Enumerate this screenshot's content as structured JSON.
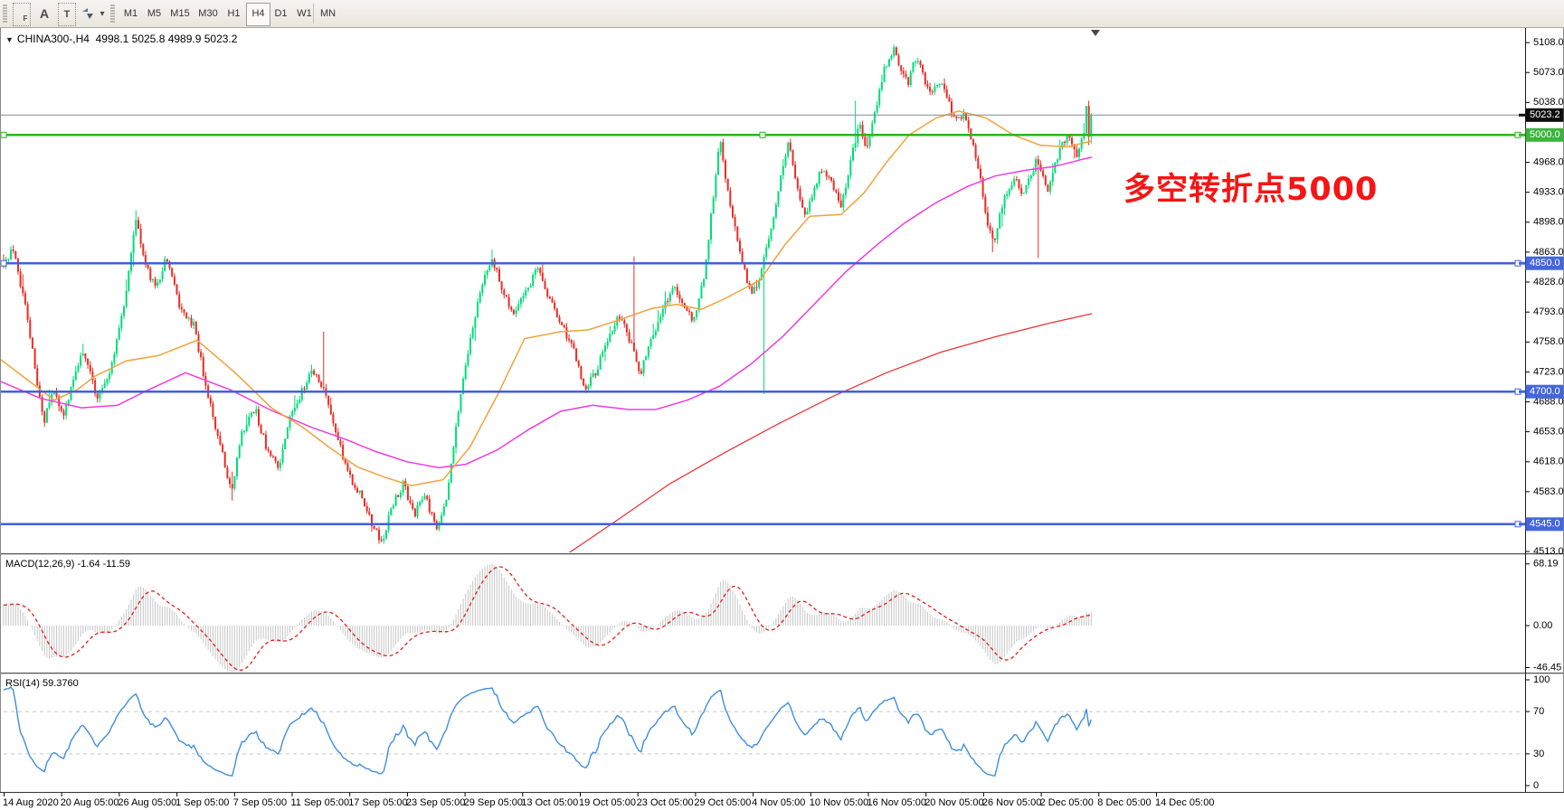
{
  "toolbar": {
    "icon_buttons": [
      {
        "name": "anchor-grid-f-icon",
        "glyph": "F"
      },
      {
        "name": "label-a-icon",
        "glyph": "A"
      },
      {
        "name": "text-tool-icon",
        "glyph": "T"
      },
      {
        "name": "arrow-style-icon",
        "glyph": ""
      },
      {
        "name": "dropdown-caret-icon",
        "glyph": "▾"
      }
    ],
    "timeframes": [
      {
        "label": "M1",
        "active": false
      },
      {
        "label": "M5",
        "active": false
      },
      {
        "label": "M15",
        "active": false
      },
      {
        "label": "M30",
        "active": false
      },
      {
        "label": "H1",
        "active": false
      },
      {
        "label": "H4",
        "active": true
      },
      {
        "label": "D1",
        "active": false
      },
      {
        "label": "W1",
        "active": false
      },
      {
        "label": "MN",
        "active": false
      }
    ]
  },
  "chart": {
    "title": {
      "dropdown_glyph": "▼",
      "symbol": "CHINA300-,H4",
      "ohlc": "4998.1 5025.8 4989.9 5023.2"
    },
    "annotation": {
      "text": "多空转折点5000",
      "color": "#F81414"
    }
  },
  "price_axis": {
    "ticks": [
      5108,
      5073,
      5038,
      4968,
      4933,
      4898,
      4863,
      4828,
      4793,
      4758,
      4723,
      4688,
      4653,
      4618,
      4583,
      4513
    ],
    "tags": [
      {
        "label": "5023.2",
        "value": 5023.2,
        "bg": "#0d0d0d",
        "type": "current-price-tag"
      },
      {
        "label": "5000.0",
        "value": 5000.0,
        "bg": "#3cb43c",
        "type": "hline-tag"
      },
      {
        "label": "4850.0",
        "value": 4850.0,
        "bg": "#4466dd",
        "type": "hline-tag"
      },
      {
        "label": "4700.0",
        "value": 4700.0,
        "bg": "#4466dd",
        "type": "hline-tag"
      },
      {
        "label": "4545.0",
        "value": 4545.0,
        "bg": "#4466dd",
        "type": "hline-tag"
      }
    ]
  },
  "time_axis": {
    "labels": [
      "14 Aug 2020",
      "20 Aug 05:00",
      "26 Aug 05:00",
      "1 Sep 05:00",
      "7 Sep 05:00",
      "11 Sep 05:00",
      "17 Sep 05:00",
      "23 Sep 05:00",
      "29 Sep 05:00",
      "13 Oct 05:00",
      "19 Oct 05:00",
      "23 Oct 05:00",
      "29 Oct 05:00",
      "4 Nov 05:00",
      "10 Nov 05:00",
      "16 Nov 05:00",
      "20 Nov 05:00",
      "26 Nov 05:00",
      "2 Dec 05:00",
      "8 Dec 05:00",
      "14 Dec 05:00"
    ]
  },
  "macd_panel": {
    "name": "MACD(12,26,9)",
    "values": "-1.64 -11.59",
    "scale": {
      "top": {
        "label": "68.19",
        "value": 68.19
      },
      "zero": {
        "label": "0.00",
        "value": 0
      },
      "bottom": {
        "label": "-46.45",
        "value": -46.45
      }
    }
  },
  "rsi_panel": {
    "name": "RSI(14)",
    "value": "59.3760",
    "scale": [
      {
        "label": "100",
        "value": 100
      },
      {
        "label": "70",
        "value": 70
      },
      {
        "label": "30",
        "value": 30
      },
      {
        "label": "0",
        "value": 0
      }
    ],
    "level_lines": [
      70,
      30
    ]
  },
  "chart_data": {
    "type": "candlestick",
    "symbol": "CHINA300-",
    "timeframe": "H4",
    "current_bar": {
      "open": 4998.1,
      "high": 5025.8,
      "low": 4989.9,
      "close": 5023.2
    },
    "y_range": [
      4511,
      5125
    ],
    "candle_up_color": "#00dc78",
    "candle_down_color": "#eb2b23",
    "bars": {
      "count": 453,
      "spacing": 2.66,
      "start_x": 4
    },
    "horizontal_lines": [
      {
        "price": 5023.2,
        "color": "#808a96",
        "width": 1,
        "style": "current-price"
      },
      {
        "price": 5000.0,
        "color": "#2eb222",
        "width": 2.5,
        "style": "solid"
      },
      {
        "price": 4850.0,
        "color": "#3f62d9",
        "width": 2.5,
        "style": "solid"
      },
      {
        "price": 4700.0,
        "color": "#3f62d9",
        "width": 2.5,
        "style": "solid"
      },
      {
        "price": 4545.0,
        "color": "#3f62d9",
        "width": 2.5,
        "style": "solid"
      }
    ],
    "price_path_keypoints": [
      [
        2,
        4846
      ],
      [
        14,
        4868
      ],
      [
        30,
        4790
      ],
      [
        48,
        4662
      ],
      [
        58,
        4700
      ],
      [
        70,
        4674
      ],
      [
        92,
        4748
      ],
      [
        108,
        4692
      ],
      [
        122,
        4726
      ],
      [
        138,
        4802
      ],
      [
        150,
        4902
      ],
      [
        160,
        4850
      ],
      [
        172,
        4820
      ],
      [
        184,
        4858
      ],
      [
        198,
        4800
      ],
      [
        214,
        4778
      ],
      [
        230,
        4695
      ],
      [
        244,
        4634
      ],
      [
        256,
        4582
      ],
      [
        268,
        4654
      ],
      [
        282,
        4680
      ],
      [
        296,
        4628
      ],
      [
        308,
        4612
      ],
      [
        320,
        4668
      ],
      [
        334,
        4700
      ],
      [
        346,
        4726
      ],
      [
        358,
        4700
      ],
      [
        372,
        4650
      ],
      [
        386,
        4602
      ],
      [
        400,
        4576
      ],
      [
        412,
        4544
      ],
      [
        422,
        4522
      ],
      [
        434,
        4568
      ],
      [
        446,
        4592
      ],
      [
        458,
        4556
      ],
      [
        470,
        4580
      ],
      [
        482,
        4538
      ],
      [
        494,
        4572
      ],
      [
        506,
        4672
      ],
      [
        520,
        4762
      ],
      [
        534,
        4830
      ],
      [
        544,
        4856
      ],
      [
        556,
        4816
      ],
      [
        568,
        4788
      ],
      [
        582,
        4818
      ],
      [
        594,
        4844
      ],
      [
        606,
        4812
      ],
      [
        620,
        4780
      ],
      [
        634,
        4750
      ],
      [
        646,
        4700
      ],
      [
        660,
        4726
      ],
      [
        674,
        4768
      ],
      [
        686,
        4790
      ],
      [
        698,
        4754
      ],
      [
        708,
        4722
      ],
      [
        720,
        4762
      ],
      [
        732,
        4794
      ],
      [
        744,
        4824
      ],
      [
        756,
        4800
      ],
      [
        768,
        4782
      ],
      [
        778,
        4832
      ],
      [
        788,
        4922
      ],
      [
        796,
        4998
      ],
      [
        803,
        4940
      ],
      [
        812,
        4892
      ],
      [
        822,
        4844
      ],
      [
        832,
        4812
      ],
      [
        842,
        4842
      ],
      [
        852,
        4888
      ],
      [
        862,
        4946
      ],
      [
        872,
        4992
      ],
      [
        880,
        4948
      ],
      [
        890,
        4904
      ],
      [
        900,
        4938
      ],
      [
        910,
        4964
      ],
      [
        920,
        4940
      ],
      [
        930,
        4914
      ],
      [
        940,
        4968
      ],
      [
        950,
        5014
      ],
      [
        958,
        4986
      ],
      [
        968,
        5028
      ],
      [
        978,
        5078
      ],
      [
        988,
        5100
      ],
      [
        996,
        5078
      ],
      [
        1004,
        5062
      ],
      [
        1012,
        5090
      ],
      [
        1020,
        5072
      ],
      [
        1028,
        5046
      ],
      [
        1038,
        5066
      ],
      [
        1048,
        5038
      ],
      [
        1058,
        5014
      ],
      [
        1066,
        5026
      ],
      [
        1074,
        4996
      ],
      [
        1082,
        4960
      ],
      [
        1090,
        4902
      ],
      [
        1098,
        4872
      ],
      [
        1106,
        4912
      ],
      [
        1114,
        4934
      ],
      [
        1122,
        4952
      ],
      [
        1130,
        4930
      ],
      [
        1138,
        4948
      ],
      [
        1146,
        4970
      ],
      [
        1152,
        4954
      ],
      [
        1158,
        4932
      ],
      [
        1166,
        4964
      ],
      [
        1174,
        4988
      ],
      [
        1182,
        5002
      ],
      [
        1190,
        4972
      ],
      [
        1197,
        4998
      ],
      [
        1203,
        5036
      ],
      [
        1207,
        5023
      ]
    ],
    "wick_spikes": [
      {
        "x": 150,
        "high": 4912
      },
      {
        "x": 358,
        "high": 4770
      },
      {
        "x": 700,
        "high": 4858
      },
      {
        "x": 946,
        "high": 5040
      },
      {
        "x": 845,
        "low": 4697
      },
      {
        "x": 1148,
        "low": 4856
      }
    ],
    "overlays": {
      "ma_fast": {
        "color": "#f2a23c",
        "points": [
          [
            0,
            4738
          ],
          [
            40,
            4706
          ],
          [
            60,
            4690
          ],
          [
            85,
            4702
          ],
          [
            105,
            4718
          ],
          [
            140,
            4736
          ],
          [
            175,
            4742
          ],
          [
            218,
            4760
          ],
          [
            260,
            4722
          ],
          [
            300,
            4681
          ],
          [
            335,
            4658
          ],
          [
            365,
            4634
          ],
          [
            395,
            4612
          ],
          [
            425,
            4600
          ],
          [
            455,
            4590
          ],
          [
            490,
            4597
          ],
          [
            520,
            4636
          ],
          [
            550,
            4696
          ],
          [
            580,
            4762
          ],
          [
            620,
            4770
          ],
          [
            650,
            4772
          ],
          [
            685,
            4784
          ],
          [
            720,
            4797
          ],
          [
            748,
            4802
          ],
          [
            775,
            4796
          ],
          [
            800,
            4808
          ],
          [
            840,
            4830
          ],
          [
            868,
            4872
          ],
          [
            895,
            4905
          ],
          [
            930,
            4907
          ],
          [
            955,
            4932
          ],
          [
            980,
            4968
          ],
          [
            1005,
            5000
          ],
          [
            1035,
            5020
          ],
          [
            1060,
            5028
          ],
          [
            1090,
            5020
          ],
          [
            1120,
            5000
          ],
          [
            1150,
            4988
          ],
          [
            1180,
            4986
          ],
          [
            1207,
            4993
          ]
        ]
      },
      "ma_mid": {
        "color": "#ee3be0",
        "points": [
          [
            0,
            4712
          ],
          [
            45,
            4692
          ],
          [
            90,
            4681
          ],
          [
            130,
            4684
          ],
          [
            160,
            4700
          ],
          [
            205,
            4722
          ],
          [
            255,
            4702
          ],
          [
            300,
            4678
          ],
          [
            345,
            4658
          ],
          [
            380,
            4645
          ],
          [
            415,
            4630
          ],
          [
            450,
            4618
          ],
          [
            485,
            4611
          ],
          [
            515,
            4615
          ],
          [
            550,
            4632
          ],
          [
            585,
            4656
          ],
          [
            620,
            4677
          ],
          [
            655,
            4684
          ],
          [
            695,
            4679
          ],
          [
            725,
            4679
          ],
          [
            760,
            4690
          ],
          [
            795,
            4706
          ],
          [
            830,
            4732
          ],
          [
            865,
            4764
          ],
          [
            900,
            4802
          ],
          [
            935,
            4840
          ],
          [
            970,
            4872
          ],
          [
            1000,
            4897
          ],
          [
            1035,
            4921
          ],
          [
            1070,
            4940
          ],
          [
            1100,
            4952
          ],
          [
            1135,
            4959
          ],
          [
            1165,
            4963
          ],
          [
            1195,
            4971
          ],
          [
            1207,
            4974
          ]
        ]
      },
      "ma_long": {
        "color": "#e93434",
        "points": [
          [
            556,
            4452
          ],
          [
            620,
            4505
          ],
          [
            680,
            4548
          ],
          [
            740,
            4592
          ],
          [
            800,
            4628
          ],
          [
            860,
            4662
          ],
          [
            920,
            4694
          ],
          [
            980,
            4722
          ],
          [
            1040,
            4746
          ],
          [
            1100,
            4764
          ],
          [
            1160,
            4780
          ],
          [
            1207,
            4791
          ]
        ]
      }
    },
    "macd": {
      "params": [
        12,
        26,
        9
      ],
      "display_max": 68.19,
      "display_min": -46.45,
      "histogram_color": "#c6c6c6",
      "signal_color": "#de2020"
    },
    "rsi": {
      "period": 14,
      "color": "#3e8ede",
      "levels": [
        70,
        30
      ],
      "level_color": "#c8c8c8"
    }
  }
}
